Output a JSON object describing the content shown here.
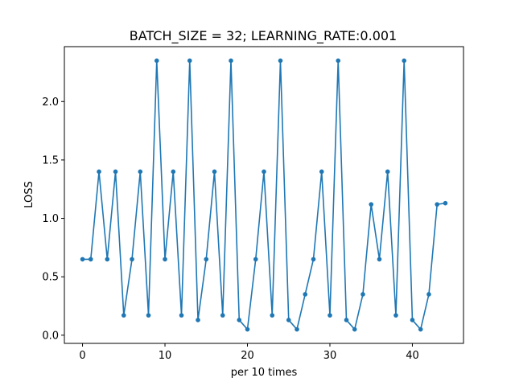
{
  "chart_data": {
    "type": "line",
    "title": "BATCH_SIZE = 32; LEARNING_RATE:0.001",
    "xlabel": "per 10 times",
    "ylabel": "LOSS",
    "xlim": [
      -2.2,
      46.2
    ],
    "ylim": [
      -0.07,
      2.47
    ],
    "xticks": [
      0,
      10,
      20,
      30,
      40
    ],
    "yticks": [
      0.0,
      0.5,
      1.0,
      1.5,
      2.0
    ],
    "ytick_labels": [
      "0.0",
      "0.5",
      "1.0",
      "1.5",
      "2.0"
    ],
    "grid": false,
    "color": "#1f77b4",
    "series": [
      {
        "x": [
          0,
          1,
          2,
          3,
          4,
          5,
          6,
          7,
          8,
          9,
          10,
          11,
          12,
          13,
          14,
          15,
          16,
          17,
          18,
          19,
          20,
          21,
          22,
          23,
          24,
          25,
          26,
          27,
          28,
          29,
          30,
          31,
          32,
          33,
          34,
          35,
          36,
          37,
          38,
          39,
          40,
          41,
          42,
          43,
          44
        ],
        "y": [
          0.65,
          0.65,
          1.4,
          0.65,
          1.4,
          0.17,
          0.65,
          1.4,
          0.17,
          2.35,
          0.65,
          1.4,
          0.17,
          2.35,
          0.13,
          0.65,
          1.4,
          0.17,
          2.35,
          0.13,
          0.05,
          0.65,
          1.4,
          0.17,
          2.35,
          0.13,
          0.05,
          0.35,
          0.65,
          1.4,
          0.17,
          2.35,
          0.13,
          0.05,
          0.35,
          1.12,
          0.65,
          1.4,
          0.17,
          2.35,
          0.13,
          0.05,
          0.35,
          1.12,
          1.13
        ]
      }
    ]
  }
}
